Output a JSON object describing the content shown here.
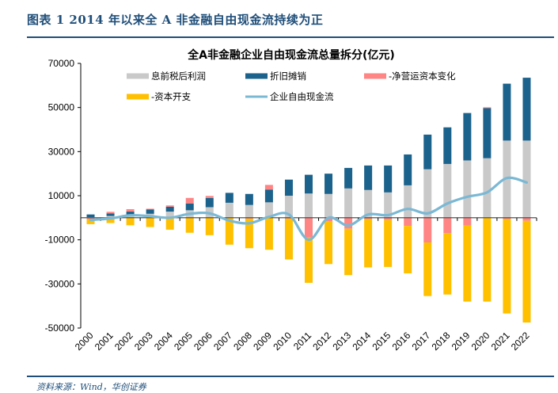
{
  "figure": {
    "title": "图表 1   2014 年以来全 A 非金融自由现金流持续为正",
    "source": "资料来源：Wind，华创证券"
  },
  "chart_data": {
    "type": "bar",
    "stacked": true,
    "title": "全A非金融企业自由现金流总量拆分(亿元)",
    "xlabel": "",
    "ylabel": "",
    "ylim": [
      -50000,
      70000
    ],
    "yticks": [
      70000,
      50000,
      30000,
      10000,
      -10000,
      -30000,
      -50000
    ],
    "ytick_labels": [
      "70000",
      "50000",
      "30000",
      "10000",
      "-10000",
      "-30000",
      "-50000"
    ],
    "categories": [
      "2000",
      "2001",
      "2002",
      "2003",
      "2004",
      "2005",
      "2006",
      "2007",
      "2008",
      "2009",
      "2010",
      "2011",
      "2012",
      "2013",
      "2014",
      "2015",
      "2016",
      "2017",
      "2018",
      "2019",
      "2020",
      "2021",
      "2022"
    ],
    "legend_position": "top",
    "grid": false,
    "series": [
      {
        "name": "息前税后利润",
        "type": "bar",
        "color": "#c9c9c9",
        "values": [
          300,
          800,
          1200,
          1800,
          2800,
          3400,
          4800,
          6800,
          5800,
          7000,
          10000,
          11000,
          10800,
          13300,
          12600,
          11500,
          14700,
          22000,
          24400,
          26000,
          27000,
          35000,
          35000
        ]
      },
      {
        "name": "折旧摊销",
        "type": "bar",
        "color": "#1b628c",
        "values": [
          1200,
          1200,
          1600,
          2000,
          2200,
          3100,
          4200,
          4500,
          5000,
          5800,
          7300,
          8500,
          9200,
          9300,
          11100,
          12200,
          14000,
          15700,
          16600,
          21500,
          22700,
          25800,
          28500
        ]
      },
      {
        "name": "-净营运资本变化",
        "type": "bar",
        "color": "#ff8585",
        "values": [
          -600,
          700,
          1100,
          300,
          600,
          2500,
          900,
          -200,
          -400,
          2100,
          -400,
          -9000,
          -1500,
          -5000,
          -600,
          -1000,
          -3700,
          -11200,
          -7000,
          -3500,
          400,
          -600,
          -1400
        ]
      },
      {
        "name": "-资本开支",
        "type": "bar",
        "color": "#ffc000",
        "values": [
          -2300,
          -2400,
          -3400,
          -4200,
          -5400,
          -6800,
          -7900,
          -12000,
          -13400,
          -14500,
          -18500,
          -20500,
          -19500,
          -21000,
          -21900,
          -21300,
          -21500,
          -24300,
          -27800,
          -34500,
          -38000,
          -42800,
          -46100
        ]
      },
      {
        "name": "企业自由现金流",
        "type": "line",
        "color": "#7ab8d4",
        "values": [
          -1000,
          -300,
          1100,
          700,
          0,
          1800,
          2000,
          -1300,
          -2500,
          400,
          1500,
          -10000,
          0,
          -3500,
          1500,
          1200,
          4000,
          2000,
          6500,
          9500,
          11500,
          18000,
          16000
        ]
      }
    ]
  }
}
